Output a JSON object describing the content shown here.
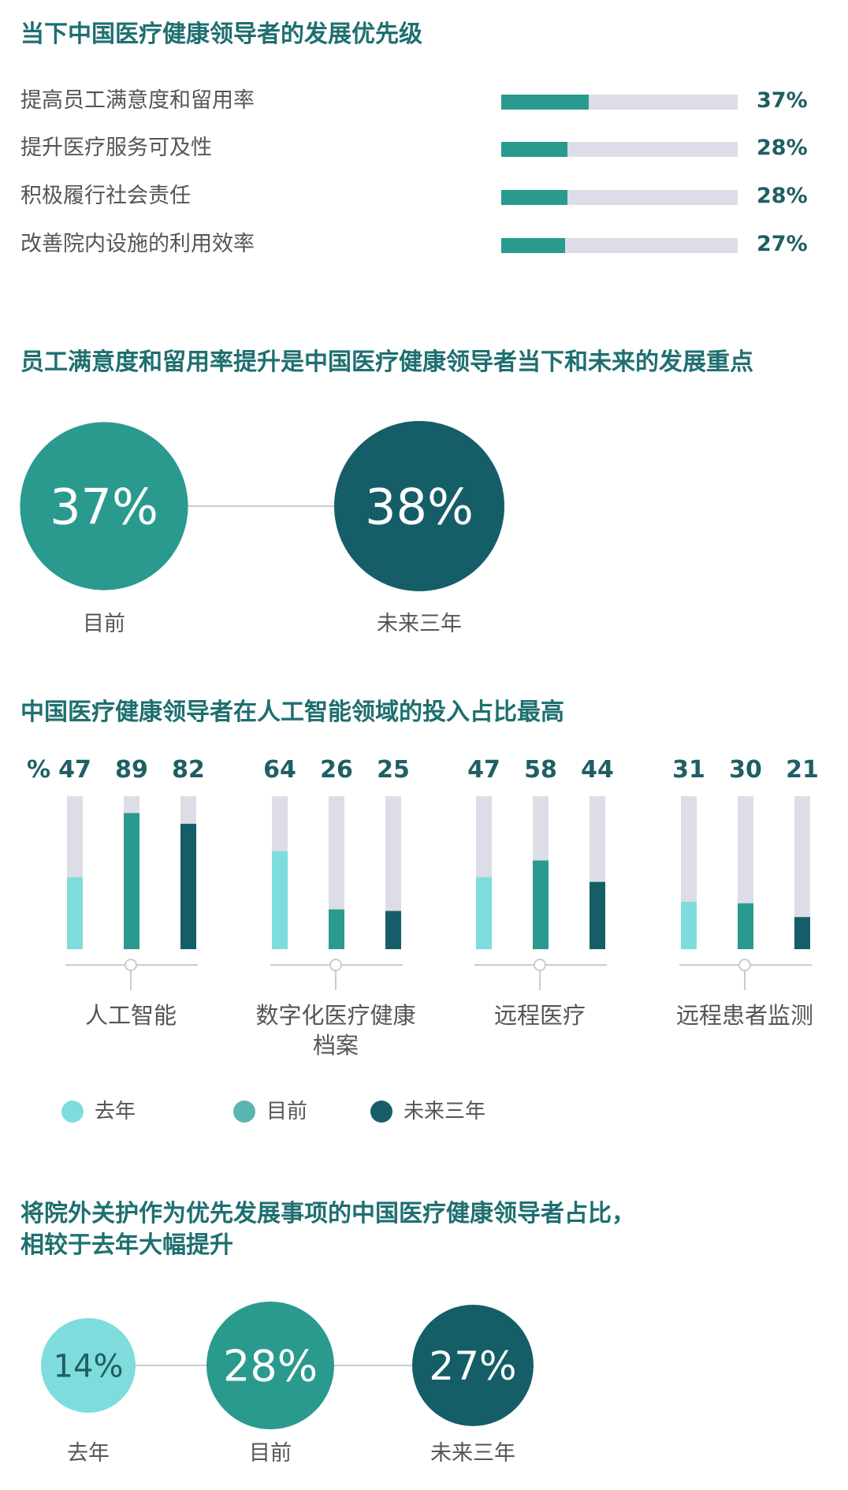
{
  "colors": {
    "title": "#1f6f70",
    "track": "#dcdde6",
    "fill_primary": "#2a9a8f",
    "last_year": "#7fdcdc",
    "current": "#2a9a8f",
    "future": "#155e68",
    "legend_current": "#5bb4b0"
  },
  "section1": {
    "title": "当下中国医疗健康领导者的发展优先级",
    "chart_data": {
      "type": "bar",
      "orientation": "horizontal",
      "categories": [
        "提高员工满意度和留用率",
        "提升医疗服务可及性",
        "积极履行社会责任",
        "改善院内设施的利用效率"
      ],
      "values": [
        37,
        28,
        28,
        27
      ],
      "value_labels": [
        "37%",
        "28%",
        "28%",
        "27%"
      ],
      "unit": "%",
      "xlim": [
        0,
        100
      ]
    }
  },
  "section2": {
    "title": "员工满意度和留用率提升是中国医疗健康领导者当下和未来的发展重点",
    "chart_data": {
      "type": "bubble",
      "categories": [
        "目前",
        "未来三年"
      ],
      "values": [
        37,
        38
      ],
      "value_labels": [
        "37%",
        "38%"
      ]
    }
  },
  "section3": {
    "title": "中国医疗健康领导者在人工智能领域的投入占比最高",
    "chart_data": {
      "type": "bar",
      "unit_label": "%",
      "ylim": [
        0,
        100
      ],
      "categories": [
        "人工智能",
        "数字化医疗健康档案",
        "远程医疗",
        "远程患者监测"
      ],
      "category_lines": [
        [
          "人工智能"
        ],
        [
          "数字化医疗健康",
          "档案"
        ],
        [
          "远程医疗"
        ],
        [
          "远程患者监测"
        ]
      ],
      "series": [
        {
          "name": "去年",
          "values": [
            47,
            64,
            47,
            31
          ]
        },
        {
          "name": "目前",
          "values": [
            89,
            26,
            58,
            30
          ]
        },
        {
          "name": "未来三年",
          "values": [
            82,
            25,
            44,
            21
          ]
        }
      ],
      "legend": [
        "去年",
        "目前",
        "未来三年"
      ],
      "legend_position": "bottom"
    }
  },
  "section4": {
    "title_line1": "将院外关护作为优先发展事项的中国医疗健康领导者占比，",
    "title_line2": "相较于去年大幅提升",
    "chart_data": {
      "type": "bubble",
      "categories": [
        "去年",
        "目前",
        "未来三年"
      ],
      "values": [
        14,
        28,
        27
      ],
      "value_labels": [
        "14%",
        "28%",
        "27%"
      ]
    }
  }
}
